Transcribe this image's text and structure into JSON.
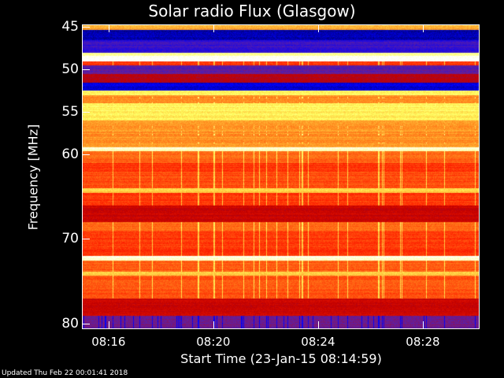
{
  "chart_data": {
    "type": "heatmap",
    "title": "Solar radio Flux (Glasgow)",
    "xlabel": "Start Time (23-Jan-15 08:14:59)",
    "ylabel": "Frequency [MHz]",
    "x_ticks": [
      "08:16",
      "08:20",
      "08:24",
      "08:28"
    ],
    "x_tick_seconds_from_start": [
      61,
      301,
      541,
      781
    ],
    "x_range_seconds": [
      0,
      911
    ],
    "y_ticks": [
      45,
      50,
      55,
      60,
      70,
      80
    ],
    "y_range": [
      45,
      80
    ],
    "y_inverted": true,
    "colormap": [
      "#000040",
      "#0000ff",
      "#6020a0",
      "#c00000",
      "#ff2000",
      "#ff9020",
      "#ffff60",
      "#ffffff"
    ],
    "intensity_profile": [
      [
        45.0,
        0.75
      ],
      [
        45.3,
        0.08
      ],
      [
        46.5,
        0.22
      ],
      [
        48.0,
        0.9
      ],
      [
        48.4,
        1.0
      ],
      [
        49.0,
        0.6
      ],
      [
        49.5,
        0.28
      ],
      [
        50.5,
        0.42
      ],
      [
        51.5,
        0.12
      ],
      [
        52.5,
        0.85
      ],
      [
        53.0,
        0.7
      ],
      [
        54.0,
        0.84
      ],
      [
        56.0,
        0.72
      ],
      [
        59.2,
        0.95
      ],
      [
        59.6,
        0.66
      ],
      [
        61.0,
        0.6
      ],
      [
        62.0,
        0.63
      ],
      [
        64.0,
        0.8
      ],
      [
        64.5,
        0.6
      ],
      [
        66.0,
        0.45
      ],
      [
        68.0,
        0.66
      ],
      [
        69.0,
        0.6
      ],
      [
        72.0,
        0.96
      ],
      [
        72.5,
        0.64
      ],
      [
        73.8,
        0.8
      ],
      [
        74.3,
        0.64
      ],
      [
        77.0,
        0.45
      ],
      [
        79.0,
        0.3
      ],
      [
        80.0,
        0.3
      ]
    ]
  },
  "footer": {
    "updated": "Updated Thu Feb 22 00:01:41 2018"
  }
}
